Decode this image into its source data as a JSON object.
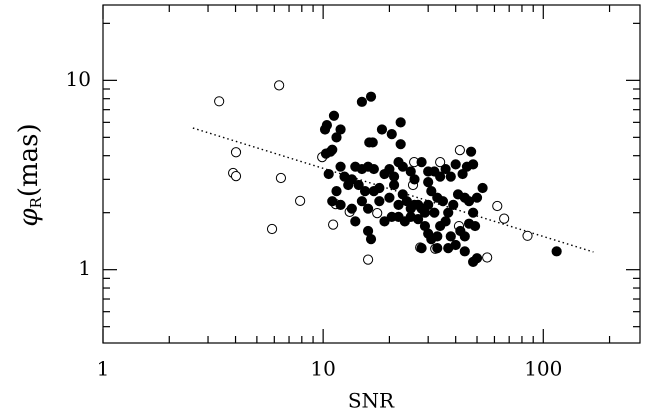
{
  "chart_data": {
    "type": "scatter",
    "xlabel": "SNR",
    "ylabel": {
      "symbol": "φ",
      "subscript": "R",
      "unit": "(mas)"
    },
    "xscale": "log",
    "yscale": "log",
    "xlim": [
      1,
      275
    ],
    "ylim": [
      0.41,
      25
    ],
    "xticks": [
      1,
      10,
      100
    ],
    "yticks": [
      1,
      10
    ],
    "xminorticks": [
      2,
      3,
      4,
      5,
      6,
      7,
      8,
      9,
      20,
      30,
      40,
      50,
      60,
      70,
      80,
      90,
      200
    ],
    "yminorticks": [
      0.5,
      0.6,
      0.7,
      0.8,
      0.9,
      2,
      3,
      4,
      5,
      6,
      7,
      8,
      9,
      20
    ],
    "fit_line": {
      "x": [
        2.56,
        169
      ],
      "y": [
        5.6,
        1.24
      ],
      "color": "#000000",
      "style": "dotted"
    },
    "series": [
      {
        "marker": "open",
        "color": "#000000",
        "x": [
          3.37,
          6.31,
          4.02,
          3.9,
          4.02,
          6.43,
          7.86,
          5.86,
          9.9,
          11.4,
          13.2,
          11.1,
          17.6,
          16.0,
          25.6,
          25.9,
          34.0,
          41.8,
          41.4,
          27.6,
          32.3,
          55.6,
          61.8,
          66.4,
          84.8
        ],
        "values": [
          7.75,
          9.41,
          4.17,
          3.24,
          3.12,
          3.05,
          2.31,
          1.64,
          3.93,
          2.22,
          2.02,
          1.73,
          1.99,
          1.13,
          2.8,
          3.7,
          3.7,
          4.28,
          1.7,
          1.31,
          1.29,
          1.16,
          2.17,
          1.86,
          1.51
        ]
      },
      {
        "marker": "filled",
        "color": "#000000",
        "x": [
          10.2,
          10.4,
          11.2,
          11.5,
          12.0,
          15.0,
          16.5,
          16.2,
          16.8,
          18.5,
          22.5,
          20.5,
          10.3,
          10.8,
          11.0,
          10.6,
          12.5,
          13.5,
          12.0,
          14.0,
          15.0,
          16.0,
          17.0,
          13.0,
          14.5,
          15.5,
          17.0,
          18.0,
          19.0,
          20.0,
          21.0,
          22.0,
          23.0,
          25.0,
          26.0,
          28.0,
          30.0,
          32.0,
          34.0,
          36.0,
          38.0,
          40.0,
          45.0,
          47.0,
          48.0,
          43.0,
          11.5,
          11.0,
          12.0,
          13.5,
          15.0,
          16.0,
          18.0,
          20.0,
          21.0,
          22.0,
          23.0,
          24.0,
          25.0,
          26.0,
          27.0,
          28.0,
          29.0,
          30.0,
          31.0,
          33.0,
          35.0,
          37.0,
          39.0,
          41.0,
          44.0,
          46.0,
          50.0,
          53.0,
          48.0,
          14.0,
          16.0,
          16.5,
          19.0,
          20.5,
          22.0,
          23.5,
          25.0,
          27.0,
          29.0,
          30.0,
          31.0,
          33.0,
          34.0,
          36.0,
          38.0,
          40.0,
          42.0,
          44.0,
          46.0,
          49.0,
          37.0,
          33.0,
          28.0,
          48.0,
          50.0,
          44.0,
          115,
          22.5,
          30.0,
          32.0
        ],
        "values": [
          5.5,
          5.8,
          6.5,
          5.0,
          5.5,
          7.7,
          8.2,
          4.7,
          4.7,
          5.5,
          6.0,
          5.2,
          4.1,
          4.2,
          4.3,
          3.2,
          3.1,
          3.0,
          3.5,
          3.5,
          3.4,
          3.5,
          3.4,
          2.8,
          2.8,
          2.6,
          2.6,
          2.7,
          3.2,
          3.4,
          3.1,
          3.7,
          3.5,
          3.3,
          3.0,
          3.7,
          3.3,
          3.3,
          3.1,
          3.4,
          3.1,
          3.6,
          3.5,
          4.2,
          3.6,
          3.2,
          2.6,
          2.3,
          2.2,
          2.1,
          2.3,
          2.1,
          2.3,
          2.4,
          2.8,
          2.2,
          2.5,
          2.3,
          2.1,
          2.2,
          2.2,
          2.1,
          2.0,
          2.2,
          2.6,
          2.4,
          2.3,
          2.0,
          2.2,
          2.5,
          2.4,
          2.3,
          2.4,
          2.7,
          2.0,
          1.8,
          1.6,
          1.45,
          1.8,
          1.9,
          1.9,
          1.8,
          1.9,
          1.85,
          1.7,
          1.55,
          1.45,
          1.5,
          1.7,
          1.8,
          1.5,
          1.35,
          1.6,
          1.5,
          1.75,
          1.7,
          1.3,
          1.3,
          1.3,
          1.1,
          1.15,
          1.25,
          1.25,
          4.6,
          2.9,
          2.0
        ]
      }
    ]
  }
}
